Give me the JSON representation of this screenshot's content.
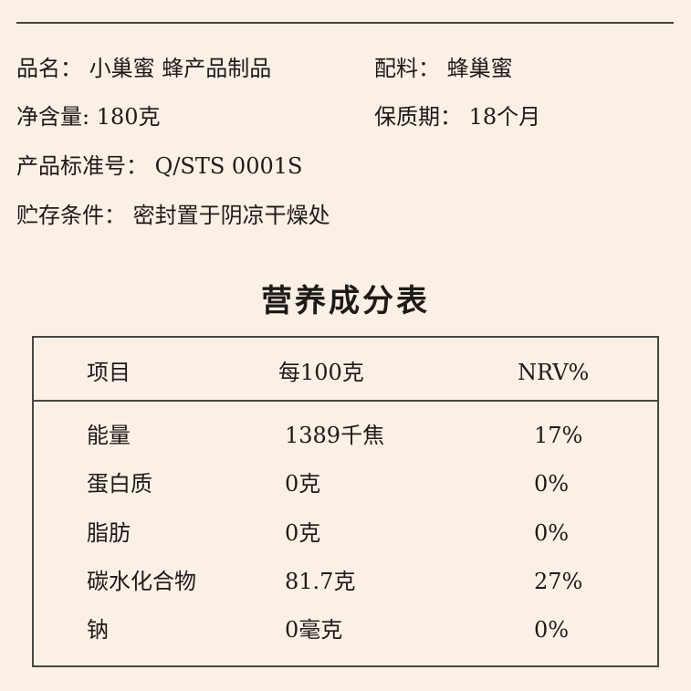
{
  "info": [
    {
      "label": "品名：",
      "value": "小巢蜜 蜂产品制品"
    },
    {
      "label": "配料：",
      "value": "蜂巢蜜"
    },
    {
      "label": "净含量:",
      "value": "180克"
    },
    {
      "label": "保质期：",
      "value": "18个月"
    },
    {
      "label": "产品标准号：",
      "value": "Q/STS 0001S"
    },
    {
      "label": "贮存条件：",
      "value": "密封置于阴凉干燥处"
    }
  ],
  "nutrition": {
    "title": "营养成分表",
    "headers": [
      "项目",
      "每100克",
      "NRV%"
    ],
    "rows": [
      [
        "能量",
        "1389千焦",
        "17%"
      ],
      [
        "蛋白质",
        "0克",
        "0%"
      ],
      [
        "脂肪",
        "0克",
        "0%"
      ],
      [
        "碳水化合物",
        "81.7克",
        "27%"
      ],
      [
        "钠",
        "0毫克",
        "0%"
      ]
    ]
  }
}
